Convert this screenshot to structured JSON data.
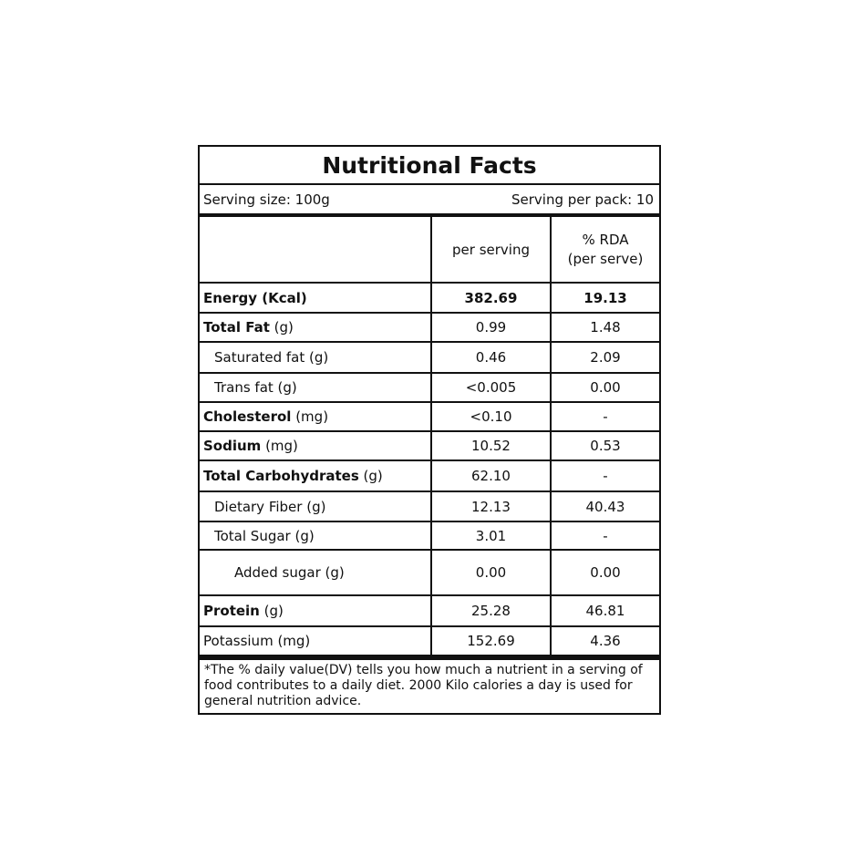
{
  "title": "Nutritional Facts",
  "serving_size": "Serving size: 100g",
  "serving_per_pack": "Serving per pack: 10",
  "columns": {
    "per_serving": "per serving",
    "rda_line1": "% RDA",
    "rda_line2": "(per serve)"
  },
  "rows": [
    {
      "bold": "Energy (Kcal)",
      "rest": "",
      "value": "382.69",
      "rda": "19.13",
      "indent": 0,
      "bold_values": true
    },
    {
      "bold": "Total Fat",
      "rest": " (g)",
      "value": "0.99",
      "rda": "1.48",
      "indent": 0
    },
    {
      "bold": "",
      "rest": "Saturated fat (g)",
      "value": "0.46",
      "rda": "2.09",
      "indent": 1
    },
    {
      "bold": "",
      "rest": "Trans fat (g)",
      "value": "<0.005",
      "rda": "0.00",
      "indent": 1
    },
    {
      "bold": "Cholesterol",
      "rest": " (mg)",
      "value": "<0.10",
      "rda": "-",
      "indent": 0
    },
    {
      "bold": "Sodium",
      "rest": " (mg)",
      "value": "10.52",
      "rda": "0.53",
      "indent": 0
    },
    {
      "bold": "Total Carbohydrates",
      "rest": " (g)",
      "value": "62.10",
      "rda": "-",
      "indent": 0
    },
    {
      "bold": "",
      "rest": "Dietary Fiber (g)",
      "value": "12.13",
      "rda": "40.43",
      "indent": 1
    },
    {
      "bold": "",
      "rest": "Total Sugar (g)",
      "value": "3.01",
      "rda": "-",
      "indent": 1
    },
    {
      "bold": "",
      "rest": "Added sugar (g)",
      "value": "0.00",
      "rda": "0.00",
      "indent": 2
    },
    {
      "bold": "Protein",
      "rest": " (g)",
      "value": "25.28",
      "rda": "46.81",
      "indent": 0
    },
    {
      "bold": "",
      "rest": "Potassium (mg)",
      "value": "152.69",
      "rda": "4.36",
      "indent": 0
    }
  ],
  "footer": "*The % daily value(DV) tells you how much a nutrient in a serving of food contributes to a daily diet. 2000 Kilo calories a day is used for general nutrition advice."
}
